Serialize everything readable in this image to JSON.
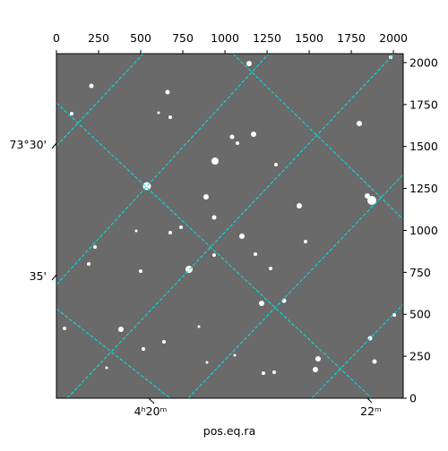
{
  "chart_data": {
    "type": "image",
    "xlabel": "pos.eq.ra",
    "xlim": [
      0,
      2058
    ],
    "ylim": [
      0,
      2053
    ],
    "xticks": [
      0,
      250,
      500,
      750,
      1000,
      1250,
      1500,
      1750,
      2000
    ],
    "yticks": [
      0,
      250,
      500,
      750,
      1000,
      1250,
      1500,
      1750,
      2000
    ],
    "ra_tick_labels": [
      "4ʰ20ᵐ",
      "22ᵐ"
    ],
    "dec_tick_labels": [
      "73°30'",
      "35'"
    ],
    "grid_color": "#00e5e5"
  }
}
